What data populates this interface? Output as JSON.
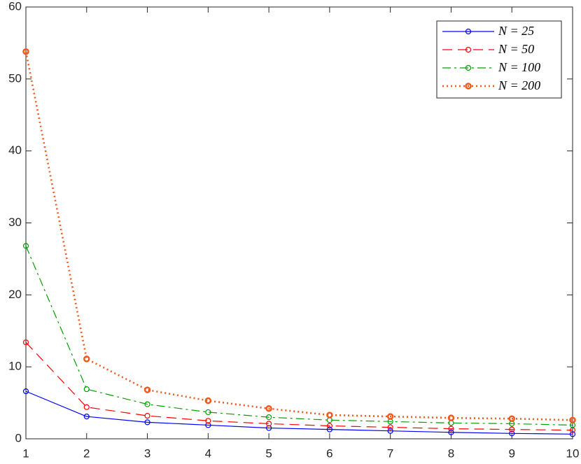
{
  "chart_data": {
    "type": "line",
    "x": [
      1,
      2,
      3,
      4,
      5,
      6,
      7,
      8,
      9,
      10
    ],
    "series": [
      {
        "name": "N = 25",
        "color": "#0000ff",
        "linestyle": "solid",
        "values": [
          6.6,
          3.1,
          2.3,
          1.9,
          1.5,
          1.3,
          1.1,
          0.9,
          0.75,
          0.65
        ]
      },
      {
        "name": "N = 50",
        "color": "#ff0000",
        "linestyle": "dashed",
        "values": [
          13.4,
          4.4,
          3.2,
          2.5,
          2.1,
          1.8,
          1.6,
          1.4,
          1.3,
          1.2
        ]
      },
      {
        "name": "N = 100",
        "color": "#00a000",
        "linestyle": "dashdot",
        "values": [
          26.8,
          6.9,
          4.8,
          3.7,
          3.0,
          2.6,
          2.4,
          2.2,
          2.1,
          1.9
        ]
      },
      {
        "name": "N = 200",
        "color": "#f05a1e",
        "linestyle": "dotted",
        "values": [
          53.8,
          11.1,
          6.8,
          5.3,
          4.2,
          3.3,
          3.1,
          2.9,
          2.8,
          2.6
        ]
      }
    ],
    "xlim": [
      1,
      10
    ],
    "xticks": [
      1,
      2,
      3,
      4,
      5,
      6,
      7,
      8,
      9,
      10
    ],
    "ylim": [
      0,
      60
    ],
    "yticks": [
      0,
      10,
      20,
      30,
      40,
      50,
      60
    ],
    "legend": "upper right"
  }
}
